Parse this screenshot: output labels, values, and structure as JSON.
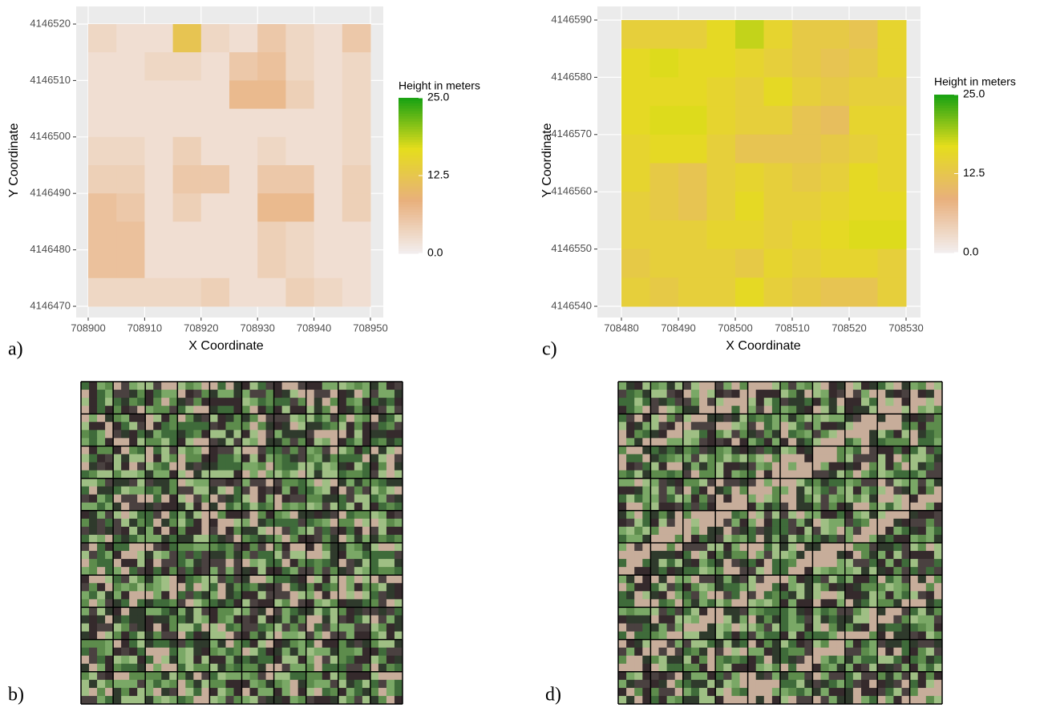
{
  "panel_labels": [
    "a)",
    "b)",
    "c)",
    "d)"
  ],
  "chart_data": [
    {
      "type": "heatmap",
      "xlabel": "X Coordinate",
      "ylabel": "Y Coordinate",
      "legend_title": "Height in meters",
      "xlim": [
        708900,
        708950
      ],
      "ylim": [
        4146470,
        4146520
      ],
      "xticks": [
        708900,
        708910,
        708920,
        708930,
        708940,
        708950
      ],
      "yticks": [
        4146470,
        4146480,
        4146490,
        4146500,
        4146510,
        4146520
      ],
      "zlim": [
        0,
        25
      ],
      "zticks": [
        {
          "value": 0,
          "label": "0.0"
        },
        {
          "value": 12.5,
          "label": "12.5"
        },
        {
          "value": 25,
          "label": "25.0"
        }
      ],
      "colors": [
        "#f2eded",
        "#e8b07c",
        "#e5dd1c",
        "#12a012"
      ],
      "values": [
        [
          3,
          2,
          2,
          12,
          3,
          2,
          5,
          3,
          2,
          5
        ],
        [
          2,
          2,
          3,
          3,
          2,
          5,
          6,
          3,
          2,
          3
        ],
        [
          2,
          2,
          2,
          2,
          2,
          7,
          7,
          4,
          2,
          3
        ],
        [
          2,
          2,
          2,
          2,
          2,
          2,
          2,
          2,
          2,
          3
        ],
        [
          3,
          3,
          2,
          4,
          2,
          2,
          3,
          2,
          2,
          3
        ],
        [
          4,
          4,
          2,
          5,
          5,
          2,
          5,
          5,
          2,
          4
        ],
        [
          6,
          5,
          2,
          4,
          2,
          2,
          7,
          7,
          2,
          4
        ],
        [
          6,
          6,
          2,
          2,
          2,
          2,
          4,
          3,
          2,
          2
        ],
        [
          6,
          6,
          2,
          2,
          2,
          2,
          4,
          3,
          2,
          2
        ],
        [
          3,
          3,
          3,
          3,
          4,
          2,
          2,
          4,
          3,
          2
        ]
      ]
    },
    {
      "type": "heatmap",
      "xlabel": "X Coordinate",
      "ylabel": "Y Coordinate",
      "legend_title": "Height in meters",
      "xlim": [
        708480,
        708530
      ],
      "ylim": [
        4146540,
        4146590
      ],
      "xticks": [
        708480,
        708490,
        708500,
        708510,
        708520,
        708530
      ],
      "yticks": [
        4146540,
        4146550,
        4146560,
        4146570,
        4146580,
        4146590
      ],
      "zlim": [
        0,
        25
      ],
      "zticks": [
        {
          "value": 0,
          "label": "0.0"
        },
        {
          "value": 12.5,
          "label": "12.5"
        },
        {
          "value": 25,
          "label": "25.0"
        }
      ],
      "colors": [
        "#f2eded",
        "#e8b07c",
        "#e5dd1c",
        "#12a012"
      ],
      "values": [
        [
          14,
          14,
          14,
          16,
          18,
          15,
          13,
          13,
          12,
          15
        ],
        [
          16,
          17,
          16,
          16,
          15,
          14,
          13,
          12,
          13,
          15
        ],
        [
          16,
          16,
          16,
          15,
          14,
          16,
          14,
          13,
          14,
          14
        ],
        [
          16,
          17,
          17,
          15,
          14,
          14,
          12,
          11,
          15,
          15
        ],
        [
          15,
          16,
          16,
          14,
          12,
          12,
          12,
          13,
          14,
          15
        ],
        [
          15,
          13,
          12,
          14,
          15,
          14,
          13,
          14,
          16,
          15
        ],
        [
          14,
          13,
          12,
          14,
          16,
          14,
          14,
          15,
          16,
          16
        ],
        [
          14,
          14,
          14,
          15,
          15,
          14,
          15,
          16,
          17,
          17
        ],
        [
          13,
          14,
          14,
          14,
          13,
          15,
          14,
          15,
          15,
          14
        ],
        [
          14,
          13,
          14,
          14,
          16,
          14,
          13,
          12,
          12,
          14
        ]
      ]
    }
  ]
}
